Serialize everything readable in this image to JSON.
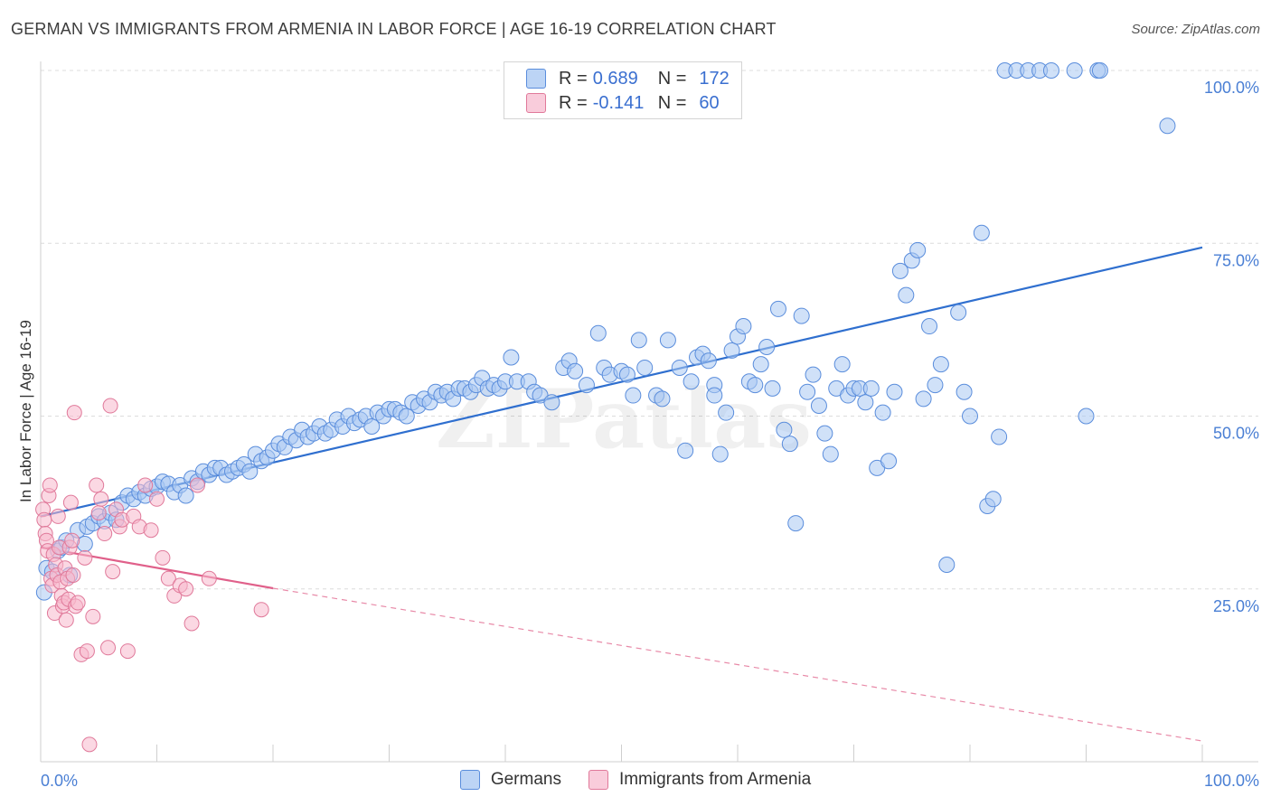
{
  "title": "GERMAN VS IMMIGRANTS FROM ARMENIA IN LABOR FORCE | AGE 16-19 CORRELATION CHART",
  "source": "Source: ZipAtlas.com",
  "watermark": "ZIPatlas",
  "legend": {
    "rows": [
      {
        "r_label": "R =",
        "r_value": "0.689",
        "n_label": "N =",
        "n_value": "172",
        "color": "#a9c8f2",
        "border": "#5a8ddc"
      },
      {
        "r_label": "R =",
        "r_value": "-0.141",
        "n_label": "N =",
        "n_value": "60",
        "color": "#f7b8cc",
        "border": "#e0799a"
      }
    ]
  },
  "bottom_legend": {
    "germans": "Germans",
    "armenia": "Immigrants from Armenia"
  },
  "chart_data": {
    "type": "scatter",
    "title": "GERMAN VS IMMIGRANTS FROM ARMENIA IN LABOR FORCE | AGE 16-19 CORRELATION CHART",
    "xlabel": "",
    "ylabel": "In Labor Force | Age 16-19",
    "xlim": [
      0,
      100
    ],
    "ylim": [
      0,
      105
    ],
    "x_tick_labels": [
      "0.0%",
      "100.0%"
    ],
    "y_ticks": [
      25,
      50,
      75,
      100
    ],
    "y_tick_labels": [
      "25.0%",
      "50.0%",
      "75.0%",
      "100.0%"
    ],
    "grid": "horizontal dashed",
    "colors": {
      "germans": "#5a8ddc",
      "armenia": "#e0799a",
      "axis_label": "#4a7fd4"
    },
    "series": [
      {
        "name": "Germans",
        "trend": {
          "x": [
            0,
            100
          ],
          "y": [
            35.5,
            74.4
          ],
          "style": "solid"
        },
        "points": [
          [
            0.3,
            24.5
          ],
          [
            0.5,
            28
          ],
          [
            1,
            27.5
          ],
          [
            1.5,
            30.5
          ],
          [
            1.8,
            31
          ],
          [
            2.2,
            32
          ],
          [
            2.5,
            27
          ],
          [
            3.2,
            33.5
          ],
          [
            3.8,
            31.5
          ],
          [
            4,
            34
          ],
          [
            4.5,
            34.5
          ],
          [
            5,
            35.5
          ],
          [
            5.5,
            34.8
          ],
          [
            6,
            36
          ],
          [
            6.5,
            35
          ],
          [
            7,
            37.5
          ],
          [
            7.5,
            38.5
          ],
          [
            8,
            38
          ],
          [
            8.5,
            39
          ],
          [
            9,
            38.5
          ],
          [
            9.5,
            39.5
          ],
          [
            10,
            39.8
          ],
          [
            10.5,
            40.5
          ],
          [
            11,
            40.2
          ],
          [
            11.5,
            39
          ],
          [
            12,
            40
          ],
          [
            12.5,
            38.5
          ],
          [
            13,
            41
          ],
          [
            13.5,
            40.5
          ],
          [
            14,
            42
          ],
          [
            14.5,
            41.5
          ],
          [
            15,
            42.5
          ],
          [
            15.5,
            42.5
          ],
          [
            16,
            41.5
          ],
          [
            16.5,
            42
          ],
          [
            17,
            42.5
          ],
          [
            17.5,
            43
          ],
          [
            18,
            42
          ],
          [
            18.5,
            44.5
          ],
          [
            19,
            43.5
          ],
          [
            19.5,
            44
          ],
          [
            20,
            45
          ],
          [
            20.5,
            46
          ],
          [
            21,
            45.5
          ],
          [
            21.5,
            47
          ],
          [
            22,
            46.5
          ],
          [
            22.5,
            48
          ],
          [
            23,
            47
          ],
          [
            23.5,
            47.5
          ],
          [
            24,
            48.5
          ],
          [
            24.5,
            47.5
          ],
          [
            25,
            48
          ],
          [
            25.5,
            49.5
          ],
          [
            26,
            48.5
          ],
          [
            26.5,
            50
          ],
          [
            27,
            49
          ],
          [
            27.5,
            49.5
          ],
          [
            28,
            50
          ],
          [
            28.5,
            48.5
          ],
          [
            29,
            50.5
          ],
          [
            29.5,
            50
          ],
          [
            30,
            51
          ],
          [
            30.5,
            51
          ],
          [
            31,
            50.5
          ],
          [
            31.5,
            50
          ],
          [
            32,
            52
          ],
          [
            32.5,
            51.5
          ],
          [
            33,
            52.5
          ],
          [
            33.5,
            52
          ],
          [
            34,
            53.5
          ],
          [
            34.5,
            53
          ],
          [
            35,
            53.5
          ],
          [
            35.5,
            52.5
          ],
          [
            36,
            54
          ],
          [
            36.5,
            54
          ],
          [
            37,
            53.5
          ],
          [
            37.5,
            54.5
          ],
          [
            38,
            55.5
          ],
          [
            38.5,
            54
          ],
          [
            39,
            54.5
          ],
          [
            39.5,
            54
          ],
          [
            40,
            55
          ],
          [
            40.5,
            58.5
          ],
          [
            41,
            55
          ],
          [
            42,
            55
          ],
          [
            42.5,
            53.5
          ],
          [
            43,
            53
          ],
          [
            44,
            52
          ],
          [
            45,
            57
          ],
          [
            45.5,
            58
          ],
          [
            46,
            56.5
          ],
          [
            47,
            54.5
          ],
          [
            48,
            62
          ],
          [
            48.5,
            57
          ],
          [
            49,
            56
          ],
          [
            50,
            56.5
          ],
          [
            50.5,
            56
          ],
          [
            51,
            53
          ],
          [
            51.5,
            61
          ],
          [
            52,
            57
          ],
          [
            53,
            53
          ],
          [
            53.5,
            52.5
          ],
          [
            54,
            61
          ],
          [
            55,
            57
          ],
          [
            55.5,
            45
          ],
          [
            56,
            55
          ],
          [
            56.5,
            58.5
          ],
          [
            57,
            59
          ],
          [
            57.5,
            58
          ],
          [
            58,
            54.5
          ],
          [
            58.5,
            44.5
          ],
          [
            58,
            53
          ],
          [
            59,
            50.5
          ],
          [
            59.5,
            59.5
          ],
          [
            60,
            61.5
          ],
          [
            60.5,
            63
          ],
          [
            61,
            55
          ],
          [
            61.5,
            54.5
          ],
          [
            62,
            57.5
          ],
          [
            62.5,
            60
          ],
          [
            63,
            54
          ],
          [
            63.5,
            65.5
          ],
          [
            64,
            48
          ],
          [
            64.5,
            46
          ],
          [
            65,
            34.5
          ],
          [
            65.5,
            64.5
          ],
          [
            66,
            53.5
          ],
          [
            66.5,
            56
          ],
          [
            67,
            51.5
          ],
          [
            67.5,
            47.5
          ],
          [
            68,
            44.5
          ],
          [
            68.5,
            54
          ],
          [
            69,
            57.5
          ],
          [
            69.5,
            53
          ],
          [
            70,
            54
          ],
          [
            70.5,
            54
          ],
          [
            71,
            52
          ],
          [
            71.5,
            54
          ],
          [
            72,
            42.5
          ],
          [
            72.5,
            50.5
          ],
          [
            73,
            43.5
          ],
          [
            73.5,
            53.5
          ],
          [
            74,
            71
          ],
          [
            74.5,
            67.5
          ],
          [
            75,
            72.5
          ],
          [
            75.5,
            74
          ],
          [
            76,
            52.5
          ],
          [
            76.5,
            63
          ],
          [
            77,
            54.5
          ],
          [
            77.5,
            57.5
          ],
          [
            78,
            28.5
          ],
          [
            79,
            65
          ],
          [
            79.5,
            53.5
          ],
          [
            80,
            50
          ],
          [
            81,
            76.5
          ],
          [
            81.5,
            37
          ],
          [
            82,
            38
          ],
          [
            82.5,
            47
          ],
          [
            83,
            100
          ],
          [
            84,
            100
          ],
          [
            85,
            100
          ],
          [
            86,
            100
          ],
          [
            87,
            100
          ],
          [
            89,
            100
          ],
          [
            90,
            50
          ],
          [
            91,
            100
          ],
          [
            91.2,
            100
          ],
          [
            97,
            92
          ]
        ]
      },
      {
        "name": "Immigrants from Armenia",
        "trend": {
          "x": [
            0,
            20
          ],
          "y": [
            31,
            25.1
          ],
          "style": "solid",
          "extended": {
            "x": [
              20,
              100
            ],
            "y": [
              25.1,
              3
            ]
          }
        },
        "points": [
          [
            0.2,
            36.5
          ],
          [
            0.3,
            35
          ],
          [
            0.4,
            33
          ],
          [
            0.5,
            32
          ],
          [
            0.6,
            30.5
          ],
          [
            0.7,
            38.5
          ],
          [
            0.8,
            40
          ],
          [
            0.9,
            26.5
          ],
          [
            1,
            25.5
          ],
          [
            1.1,
            30
          ],
          [
            1.2,
            21.5
          ],
          [
            1.3,
            28.5
          ],
          [
            1.4,
            27
          ],
          [
            1.5,
            35.5
          ],
          [
            1.6,
            31
          ],
          [
            1.7,
            26
          ],
          [
            1.8,
            24
          ],
          [
            1.9,
            22.5
          ],
          [
            2,
            23
          ],
          [
            2.1,
            28
          ],
          [
            2.2,
            20.5
          ],
          [
            2.3,
            26.5
          ],
          [
            2.4,
            23.5
          ],
          [
            2.5,
            31
          ],
          [
            2.6,
            37.5
          ],
          [
            2.7,
            32
          ],
          [
            2.8,
            27
          ],
          [
            2.9,
            50.5
          ],
          [
            3,
            22.5
          ],
          [
            3.2,
            23
          ],
          [
            3.5,
            15.5
          ],
          [
            3.8,
            29.5
          ],
          [
            4,
            16
          ],
          [
            4.2,
            2.5
          ],
          [
            4.5,
            21
          ],
          [
            4.8,
            40
          ],
          [
            5,
            36
          ],
          [
            5.2,
            38
          ],
          [
            5.5,
            33
          ],
          [
            5.8,
            16.5
          ],
          [
            6,
            51.5
          ],
          [
            6.2,
            27.5
          ],
          [
            6.5,
            36.5
          ],
          [
            6.8,
            34
          ],
          [
            7,
            35
          ],
          [
            7.5,
            16
          ],
          [
            8,
            35.5
          ],
          [
            8.5,
            34
          ],
          [
            9,
            40
          ],
          [
            9.5,
            33.5
          ],
          [
            10,
            38
          ],
          [
            10.5,
            29.5
          ],
          [
            11,
            26.5
          ],
          [
            11.5,
            24
          ],
          [
            12,
            25.5
          ],
          [
            12.5,
            25
          ],
          [
            13,
            20
          ],
          [
            13.5,
            40
          ],
          [
            14.5,
            26.5
          ],
          [
            19,
            22
          ]
        ]
      }
    ]
  }
}
